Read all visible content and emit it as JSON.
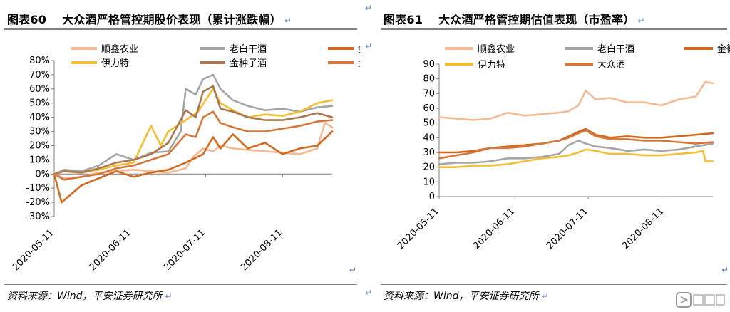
{
  "return_mark": "↵",
  "left": {
    "title_num": "图表60",
    "title_text": "大众酒严格管控期股价表现（累计涨跌幅）",
    "source": "资料来源：Wind，平安证券研究所"
  },
  "right": {
    "title_num": "图表61",
    "title_text": "大众酒严格管控期估值表现（市盈率）",
    "source": "资料来源：Wind，平安证券研究所"
  },
  "colors": {
    "顺鑫农业": "#f5b994",
    "老白干酒": "#a5a5a5",
    "金徽酒": "#d16a1c",
    "伊力特": "#f2be35",
    "金种子酒": "#a97850",
    "大众酒": "#d3773c"
  },
  "chart_data": [
    {
      "type": "line",
      "title": "大众酒严格管控期股价表现（累计涨跌幅）",
      "x_tick_labels": [
        "2020-05-11",
        "2020-06-11",
        "2020-07-11",
        "2020-08-11"
      ],
      "x_range": [
        "2020-05-11",
        "2020-08-31"
      ],
      "ylim": [
        -30,
        80
      ],
      "y_ticks": [
        -30,
        -20,
        -10,
        0,
        10,
        20,
        30,
        40,
        50,
        60,
        70,
        80
      ],
      "y_tick_labels": [
        "-30%",
        "-20%",
        "-10%",
        "0%",
        "10%",
        "20%",
        "30%",
        "40%",
        "50%",
        "60%",
        "70%",
        "80%"
      ],
      "legend_placement": "top",
      "series": [
        {
          "name": "顺鑫农业",
          "points": [
            [
              "2020-05-11",
              0
            ],
            [
              "2020-05-15",
              -3
            ],
            [
              "2020-05-22",
              -2
            ],
            [
              "2020-05-29",
              1
            ],
            [
              "2020-06-05",
              2
            ],
            [
              "2020-06-12",
              3
            ],
            [
              "2020-06-19",
              2
            ],
            [
              "2020-06-26",
              1
            ],
            [
              "2020-07-03",
              4
            ],
            [
              "2020-07-06",
              12
            ],
            [
              "2020-07-10",
              18
            ],
            [
              "2020-07-14",
              16
            ],
            [
              "2020-07-17",
              20
            ],
            [
              "2020-07-22",
              18
            ],
            [
              "2020-07-28",
              17
            ],
            [
              "2020-08-04",
              16
            ],
            [
              "2020-08-11",
              15
            ],
            [
              "2020-08-18",
              14
            ],
            [
              "2020-08-25",
              18
            ],
            [
              "2020-08-28",
              36
            ],
            [
              "2020-08-31",
              33
            ]
          ]
        },
        {
          "name": "老白干酒",
          "points": [
            [
              "2020-05-11",
              0
            ],
            [
              "2020-05-15",
              3
            ],
            [
              "2020-05-22",
              2
            ],
            [
              "2020-05-29",
              6
            ],
            [
              "2020-06-05",
              14
            ],
            [
              "2020-06-12",
              10
            ],
            [
              "2020-06-19",
              15
            ],
            [
              "2020-06-26",
              16
            ],
            [
              "2020-07-01",
              30
            ],
            [
              "2020-07-03",
              60
            ],
            [
              "2020-07-07",
              56
            ],
            [
              "2020-07-10",
              67
            ],
            [
              "2020-07-14",
              70
            ],
            [
              "2020-07-17",
              60
            ],
            [
              "2020-07-22",
              52
            ],
            [
              "2020-07-28",
              48
            ],
            [
              "2020-08-04",
              45
            ],
            [
              "2020-08-11",
              46
            ],
            [
              "2020-08-18",
              44
            ],
            [
              "2020-08-25",
              47
            ],
            [
              "2020-08-31",
              48
            ]
          ]
        },
        {
          "name": "金徽酒",
          "points": [
            [
              "2020-05-11",
              0
            ],
            [
              "2020-05-14",
              -20
            ],
            [
              "2020-05-18",
              -14
            ],
            [
              "2020-05-22",
              -8
            ],
            [
              "2020-05-29",
              -3
            ],
            [
              "2020-06-05",
              2
            ],
            [
              "2020-06-12",
              -2
            ],
            [
              "2020-06-19",
              1
            ],
            [
              "2020-06-26",
              3
            ],
            [
              "2020-07-03",
              8
            ],
            [
              "2020-07-10",
              14
            ],
            [
              "2020-07-14",
              26
            ],
            [
              "2020-07-17",
              18
            ],
            [
              "2020-07-22",
              28
            ],
            [
              "2020-07-28",
              18
            ],
            [
              "2020-08-04",
              22
            ],
            [
              "2020-08-11",
              14
            ],
            [
              "2020-08-18",
              18
            ],
            [
              "2020-08-25",
              20
            ],
            [
              "2020-08-31",
              30
            ]
          ]
        },
        {
          "name": "伊力特",
          "points": [
            [
              "2020-05-11",
              0
            ],
            [
              "2020-05-15",
              2
            ],
            [
              "2020-05-22",
              1
            ],
            [
              "2020-05-29",
              3
            ],
            [
              "2020-06-05",
              6
            ],
            [
              "2020-06-12",
              8
            ],
            [
              "2020-06-19",
              34
            ],
            [
              "2020-06-23",
              20
            ],
            [
              "2020-06-26",
              30
            ],
            [
              "2020-07-03",
              38
            ],
            [
              "2020-07-08",
              44
            ],
            [
              "2020-07-14",
              60
            ],
            [
              "2020-07-17",
              50
            ],
            [
              "2020-07-22",
              45
            ],
            [
              "2020-07-28",
              40
            ],
            [
              "2020-08-04",
              42
            ],
            [
              "2020-08-11",
              41
            ],
            [
              "2020-08-18",
              44
            ],
            [
              "2020-08-25",
              50
            ],
            [
              "2020-08-31",
              52
            ]
          ]
        },
        {
          "name": "金种子酒",
          "points": [
            [
              "2020-05-11",
              0
            ],
            [
              "2020-05-15",
              2
            ],
            [
              "2020-05-22",
              1
            ],
            [
              "2020-05-29",
              4
            ],
            [
              "2020-06-05",
              8
            ],
            [
              "2020-06-12",
              10
            ],
            [
              "2020-06-19",
              14
            ],
            [
              "2020-06-26",
              22
            ],
            [
              "2020-07-03",
              45
            ],
            [
              "2020-07-07",
              40
            ],
            [
              "2020-07-10",
              58
            ],
            [
              "2020-07-14",
              62
            ],
            [
              "2020-07-17",
              46
            ],
            [
              "2020-07-22",
              44
            ],
            [
              "2020-07-28",
              40
            ],
            [
              "2020-08-04",
              38
            ],
            [
              "2020-08-11",
              38
            ],
            [
              "2020-08-18",
              40
            ],
            [
              "2020-08-25",
              43
            ],
            [
              "2020-08-31",
              40
            ]
          ]
        },
        {
          "name": "大众酒",
          "points": [
            [
              "2020-05-11",
              0
            ],
            [
              "2020-05-15",
              -4
            ],
            [
              "2020-05-22",
              -2
            ],
            [
              "2020-05-29",
              0
            ],
            [
              "2020-06-05",
              4
            ],
            [
              "2020-06-12",
              6
            ],
            [
              "2020-06-19",
              10
            ],
            [
              "2020-06-26",
              14
            ],
            [
              "2020-07-03",
              28
            ],
            [
              "2020-07-07",
              26
            ],
            [
              "2020-07-10",
              40
            ],
            [
              "2020-07-14",
              44
            ],
            [
              "2020-07-17",
              36
            ],
            [
              "2020-07-22",
              33
            ],
            [
              "2020-07-28",
              30
            ],
            [
              "2020-08-04",
              30
            ],
            [
              "2020-08-11",
              32
            ],
            [
              "2020-08-18",
              34
            ],
            [
              "2020-08-25",
              37
            ],
            [
              "2020-08-31",
              38
            ]
          ]
        }
      ]
    },
    {
      "type": "line",
      "title": "大众酒严格管控期估值表现（市盈率）",
      "x_tick_labels": [
        "2020-05-11",
        "2020-06-11",
        "2020-07-11",
        "2020-08-11"
      ],
      "x_range": [
        "2020-05-11",
        "2020-08-31"
      ],
      "ylim": [
        0,
        90
      ],
      "y_ticks": [
        0,
        10,
        20,
        30,
        40,
        50,
        60,
        70,
        80,
        90
      ],
      "y_tick_labels": [
        "0",
        "10",
        "20",
        "30",
        "40",
        "50",
        "60",
        "70",
        "80",
        "90"
      ],
      "legend_placement": "top",
      "series": [
        {
          "name": "顺鑫农业",
          "points": [
            [
              "2020-05-11",
              54
            ],
            [
              "2020-05-18",
              53
            ],
            [
              "2020-05-25",
              52
            ],
            [
              "2020-06-01",
              53
            ],
            [
              "2020-06-08",
              57
            ],
            [
              "2020-06-15",
              55
            ],
            [
              "2020-06-22",
              56
            ],
            [
              "2020-06-29",
              57
            ],
            [
              "2020-07-03",
              58
            ],
            [
              "2020-07-07",
              62
            ],
            [
              "2020-07-10",
              72
            ],
            [
              "2020-07-14",
              66
            ],
            [
              "2020-07-20",
              67
            ],
            [
              "2020-07-27",
              64
            ],
            [
              "2020-08-03",
              64
            ],
            [
              "2020-08-10",
              62
            ],
            [
              "2020-08-17",
              66
            ],
            [
              "2020-08-24",
              68
            ],
            [
              "2020-08-28",
              78
            ],
            [
              "2020-08-31",
              77
            ]
          ]
        },
        {
          "name": "老白干酒",
          "points": [
            [
              "2020-05-11",
              22
            ],
            [
              "2020-05-18",
              23
            ],
            [
              "2020-05-25",
              23
            ],
            [
              "2020-06-01",
              24
            ],
            [
              "2020-06-08",
              26
            ],
            [
              "2020-06-15",
              26
            ],
            [
              "2020-06-22",
              27
            ],
            [
              "2020-06-29",
              29
            ],
            [
              "2020-07-03",
              35
            ],
            [
              "2020-07-07",
              38
            ],
            [
              "2020-07-10",
              36
            ],
            [
              "2020-07-14",
              34
            ],
            [
              "2020-07-20",
              33
            ],
            [
              "2020-07-27",
              31
            ],
            [
              "2020-08-03",
              32
            ],
            [
              "2020-08-10",
              31
            ],
            [
              "2020-08-17",
              32
            ],
            [
              "2020-08-24",
              34
            ],
            [
              "2020-08-31",
              36
            ]
          ]
        },
        {
          "name": "金徽酒",
          "points": [
            [
              "2020-05-11",
              30
            ],
            [
              "2020-05-18",
              30
            ],
            [
              "2020-05-25",
              31
            ],
            [
              "2020-06-01",
              33
            ],
            [
              "2020-06-08",
              34
            ],
            [
              "2020-06-15",
              35
            ],
            [
              "2020-06-22",
              36
            ],
            [
              "2020-06-29",
              38
            ],
            [
              "2020-07-03",
              41
            ],
            [
              "2020-07-07",
              44
            ],
            [
              "2020-07-10",
              46
            ],
            [
              "2020-07-14",
              42
            ],
            [
              "2020-07-20",
              40
            ],
            [
              "2020-07-27",
              41
            ],
            [
              "2020-08-03",
              40
            ],
            [
              "2020-08-10",
              40
            ],
            [
              "2020-08-17",
              41
            ],
            [
              "2020-08-24",
              42
            ],
            [
              "2020-08-31",
              43
            ]
          ]
        },
        {
          "name": "伊力特",
          "points": [
            [
              "2020-05-11",
              20
            ],
            [
              "2020-05-18",
              20
            ],
            [
              "2020-05-25",
              21
            ],
            [
              "2020-06-01",
              21
            ],
            [
              "2020-06-08",
              22
            ],
            [
              "2020-06-15",
              24
            ],
            [
              "2020-06-22",
              26
            ],
            [
              "2020-06-29",
              27
            ],
            [
              "2020-07-03",
              28
            ],
            [
              "2020-07-07",
              30
            ],
            [
              "2020-07-10",
              32
            ],
            [
              "2020-07-14",
              31
            ],
            [
              "2020-07-20",
              29
            ],
            [
              "2020-07-27",
              29
            ],
            [
              "2020-08-03",
              28
            ],
            [
              "2020-08-10",
              28
            ],
            [
              "2020-08-17",
              29
            ],
            [
              "2020-08-24",
              30
            ],
            [
              "2020-08-27",
              31
            ],
            [
              "2020-08-28",
              24
            ],
            [
              "2020-08-31",
              24
            ]
          ]
        },
        {
          "name": "大众酒",
          "points": [
            [
              "2020-05-11",
              26
            ],
            [
              "2020-05-18",
              28
            ],
            [
              "2020-05-25",
              30
            ],
            [
              "2020-06-01",
              33
            ],
            [
              "2020-06-08",
              33
            ],
            [
              "2020-06-15",
              34
            ],
            [
              "2020-06-22",
              36
            ],
            [
              "2020-06-29",
              38
            ],
            [
              "2020-07-03",
              40
            ],
            [
              "2020-07-07",
              43
            ],
            [
              "2020-07-10",
              45
            ],
            [
              "2020-07-14",
              41
            ],
            [
              "2020-07-20",
              39
            ],
            [
              "2020-07-27",
              39
            ],
            [
              "2020-08-03",
              38
            ],
            [
              "2020-08-10",
              38
            ],
            [
              "2020-08-17",
              37
            ],
            [
              "2020-08-24",
              36
            ],
            [
              "2020-08-31",
              37
            ]
          ]
        }
      ]
    }
  ]
}
